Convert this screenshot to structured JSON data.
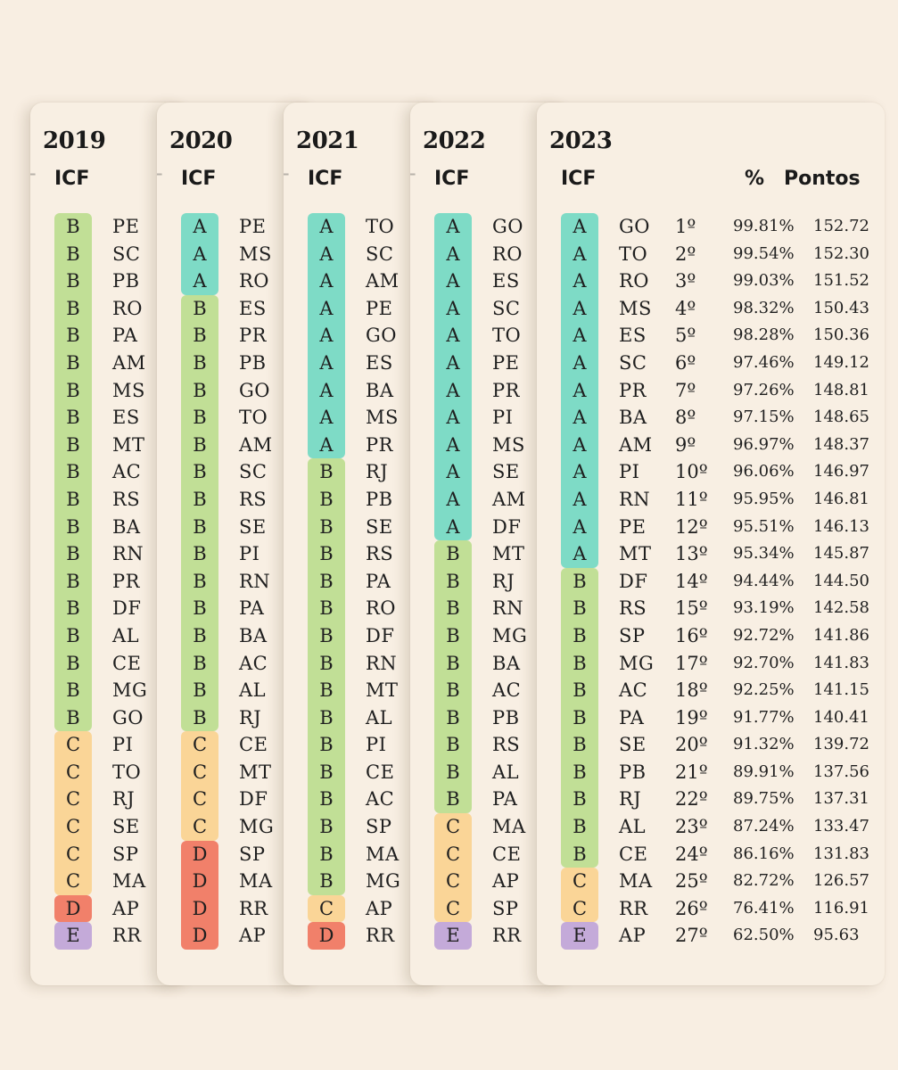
{
  "grade_colors": {
    "A": "#7edbc6",
    "B": "#c1df96",
    "C": "#fad597",
    "D": "#f1806a",
    "E": "#c4aad9"
  },
  "header_icf": "ICF",
  "header_pct": "%",
  "header_pontos": "Pontos",
  "plus_icon": "+",
  "years": [
    {
      "year": "2019",
      "rows": [
        {
          "grade": "B",
          "state": "PE"
        },
        {
          "grade": "B",
          "state": "SC"
        },
        {
          "grade": "B",
          "state": "PB"
        },
        {
          "grade": "B",
          "state": "RO"
        },
        {
          "grade": "B",
          "state": "PA"
        },
        {
          "grade": "B",
          "state": "AM"
        },
        {
          "grade": "B",
          "state": "MS"
        },
        {
          "grade": "B",
          "state": "ES"
        },
        {
          "grade": "B",
          "state": "MT"
        },
        {
          "grade": "B",
          "state": "AC"
        },
        {
          "grade": "B",
          "state": "RS"
        },
        {
          "grade": "B",
          "state": "BA"
        },
        {
          "grade": "B",
          "state": "RN"
        },
        {
          "grade": "B",
          "state": "PR"
        },
        {
          "grade": "B",
          "state": "DF"
        },
        {
          "grade": "B",
          "state": "AL"
        },
        {
          "grade": "B",
          "state": "CE"
        },
        {
          "grade": "B",
          "state": "MG"
        },
        {
          "grade": "B",
          "state": "GO"
        },
        {
          "grade": "C",
          "state": "PI"
        },
        {
          "grade": "C",
          "state": "TO"
        },
        {
          "grade": "C",
          "state": "RJ"
        },
        {
          "grade": "C",
          "state": "SE"
        },
        {
          "grade": "C",
          "state": "SP"
        },
        {
          "grade": "C",
          "state": "MA"
        },
        {
          "grade": "D",
          "state": "AP"
        },
        {
          "grade": "E",
          "state": "RR"
        }
      ]
    },
    {
      "year": "2020",
      "rows": [
        {
          "grade": "A",
          "state": "PE"
        },
        {
          "grade": "A",
          "state": "MS"
        },
        {
          "grade": "A",
          "state": "RO"
        },
        {
          "grade": "B",
          "state": "ES"
        },
        {
          "grade": "B",
          "state": "PR"
        },
        {
          "grade": "B",
          "state": "PB"
        },
        {
          "grade": "B",
          "state": "GO"
        },
        {
          "grade": "B",
          "state": "TO"
        },
        {
          "grade": "B",
          "state": "AM"
        },
        {
          "grade": "B",
          "state": "SC"
        },
        {
          "grade": "B",
          "state": "RS"
        },
        {
          "grade": "B",
          "state": "SE"
        },
        {
          "grade": "B",
          "state": "PI"
        },
        {
          "grade": "B",
          "state": "RN"
        },
        {
          "grade": "B",
          "state": "PA"
        },
        {
          "grade": "B",
          "state": "BA"
        },
        {
          "grade": "B",
          "state": "AC"
        },
        {
          "grade": "B",
          "state": "AL"
        },
        {
          "grade": "B",
          "state": "RJ"
        },
        {
          "grade": "C",
          "state": "CE"
        },
        {
          "grade": "C",
          "state": "MT"
        },
        {
          "grade": "C",
          "state": "DF"
        },
        {
          "grade": "C",
          "state": "MG"
        },
        {
          "grade": "D",
          "state": "SP"
        },
        {
          "grade": "D",
          "state": "MA"
        },
        {
          "grade": "D",
          "state": "RR"
        },
        {
          "grade": "D",
          "state": "AP"
        }
      ]
    },
    {
      "year": "2021",
      "rows": [
        {
          "grade": "A",
          "state": "TO"
        },
        {
          "grade": "A",
          "state": "SC"
        },
        {
          "grade": "A",
          "state": "AM"
        },
        {
          "grade": "A",
          "state": "PE"
        },
        {
          "grade": "A",
          "state": "GO"
        },
        {
          "grade": "A",
          "state": "ES"
        },
        {
          "grade": "A",
          "state": "BA"
        },
        {
          "grade": "A",
          "state": "MS"
        },
        {
          "grade": "A",
          "state": "PR"
        },
        {
          "grade": "B",
          "state": "RJ"
        },
        {
          "grade": "B",
          "state": "PB"
        },
        {
          "grade": "B",
          "state": "SE"
        },
        {
          "grade": "B",
          "state": "RS"
        },
        {
          "grade": "B",
          "state": "PA"
        },
        {
          "grade": "B",
          "state": "RO"
        },
        {
          "grade": "B",
          "state": "DF"
        },
        {
          "grade": "B",
          "state": "RN"
        },
        {
          "grade": "B",
          "state": "MT"
        },
        {
          "grade": "B",
          "state": "AL"
        },
        {
          "grade": "B",
          "state": "PI"
        },
        {
          "grade": "B",
          "state": "CE"
        },
        {
          "grade": "B",
          "state": "AC"
        },
        {
          "grade": "B",
          "state": "SP"
        },
        {
          "grade": "B",
          "state": "MA"
        },
        {
          "grade": "B",
          "state": "MG"
        },
        {
          "grade": "C",
          "state": "AP"
        },
        {
          "grade": "D",
          "state": "RR"
        }
      ]
    },
    {
      "year": "2022",
      "rows": [
        {
          "grade": "A",
          "state": "GO"
        },
        {
          "grade": "A",
          "state": "RO"
        },
        {
          "grade": "A",
          "state": "ES"
        },
        {
          "grade": "A",
          "state": "SC"
        },
        {
          "grade": "A",
          "state": "TO"
        },
        {
          "grade": "A",
          "state": "PE"
        },
        {
          "grade": "A",
          "state": "PR"
        },
        {
          "grade": "A",
          "state": "PI"
        },
        {
          "grade": "A",
          "state": "MS"
        },
        {
          "grade": "A",
          "state": "SE"
        },
        {
          "grade": "A",
          "state": "AM"
        },
        {
          "grade": "A",
          "state": "DF"
        },
        {
          "grade": "B",
          "state": "MT"
        },
        {
          "grade": "B",
          "state": "RJ"
        },
        {
          "grade": "B",
          "state": "RN"
        },
        {
          "grade": "B",
          "state": "MG"
        },
        {
          "grade": "B",
          "state": "BA"
        },
        {
          "grade": "B",
          "state": "AC"
        },
        {
          "grade": "B",
          "state": "PB"
        },
        {
          "grade": "B",
          "state": "RS"
        },
        {
          "grade": "B",
          "state": "AL"
        },
        {
          "grade": "B",
          "state": "PA"
        },
        {
          "grade": "C",
          "state": "MA"
        },
        {
          "grade": "C",
          "state": "CE"
        },
        {
          "grade": "C",
          "state": "AP"
        },
        {
          "grade": "C",
          "state": "SP"
        },
        {
          "grade": "E",
          "state": "RR"
        }
      ]
    },
    {
      "year": "2023",
      "rows": [
        {
          "grade": "A",
          "state": "GO",
          "pos": "1º",
          "pct": "99.81%",
          "pts": "152.72"
        },
        {
          "grade": "A",
          "state": "TO",
          "pos": "2º",
          "pct": "99.54%",
          "pts": "152.30"
        },
        {
          "grade": "A",
          "state": "RO",
          "pos": "3º",
          "pct": "99.03%",
          "pts": "151.52"
        },
        {
          "grade": "A",
          "state": "MS",
          "pos": "4º",
          "pct": "98.32%",
          "pts": "150.43"
        },
        {
          "grade": "A",
          "state": "ES",
          "pos": "5º",
          "pct": "98.28%",
          "pts": "150.36"
        },
        {
          "grade": "A",
          "state": "SC",
          "pos": "6º",
          "pct": "97.46%",
          "pts": "149.12"
        },
        {
          "grade": "A",
          "state": "PR",
          "pos": "7º",
          "pct": "97.26%",
          "pts": "148.81"
        },
        {
          "grade": "A",
          "state": "BA",
          "pos": "8º",
          "pct": "97.15%",
          "pts": "148.65"
        },
        {
          "grade": "A",
          "state": "AM",
          "pos": "9º",
          "pct": "96.97%",
          "pts": "148.37"
        },
        {
          "grade": "A",
          "state": "PI",
          "pos": "10º",
          "pct": "96.06%",
          "pts": "146.97"
        },
        {
          "grade": "A",
          "state": "RN",
          "pos": "11º",
          "pct": "95.95%",
          "pts": "146.81"
        },
        {
          "grade": "A",
          "state": "PE",
          "pos": "12º",
          "pct": "95.51%",
          "pts": "146.13"
        },
        {
          "grade": "A",
          "state": "MT",
          "pos": "13º",
          "pct": "95.34%",
          "pts": "145.87"
        },
        {
          "grade": "B",
          "state": "DF",
          "pos": "14º",
          "pct": "94.44%",
          "pts": "144.50"
        },
        {
          "grade": "B",
          "state": "RS",
          "pos": "15º",
          "pct": "93.19%",
          "pts": "142.58"
        },
        {
          "grade": "B",
          "state": "SP",
          "pos": "16º",
          "pct": "92.72%",
          "pts": "141.86"
        },
        {
          "grade": "B",
          "state": "MG",
          "pos": "17º",
          "pct": "92.70%",
          "pts": "141.83"
        },
        {
          "grade": "B",
          "state": "AC",
          "pos": "18º",
          "pct": "92.25%",
          "pts": "141.15"
        },
        {
          "grade": "B",
          "state": "PA",
          "pos": "19º",
          "pct": "91.77%",
          "pts": "140.41"
        },
        {
          "grade": "B",
          "state": "SE",
          "pos": "20º",
          "pct": "91.32%",
          "pts": "139.72"
        },
        {
          "grade": "B",
          "state": "PB",
          "pos": "21º",
          "pct": "89.91%",
          "pts": "137.56"
        },
        {
          "grade": "B",
          "state": "RJ",
          "pos": "22º",
          "pct": "89.75%",
          "pts": "137.31"
        },
        {
          "grade": "B",
          "state": "AL",
          "pos": "23º",
          "pct": "87.24%",
          "pts": "133.47"
        },
        {
          "grade": "B",
          "state": "CE",
          "pos": "24º",
          "pct": "86.16%",
          "pts": "131.83"
        },
        {
          "grade": "C",
          "state": "MA",
          "pos": "25º",
          "pct": "82.72%",
          "pts": "126.57"
        },
        {
          "grade": "C",
          "state": "RR",
          "pos": "26º",
          "pct": "76.41%",
          "pts": "116.91"
        },
        {
          "grade": "E",
          "state": "AP",
          "pos": "27º",
          "pct": "62.50%",
          "pts": "95.63"
        }
      ]
    }
  ]
}
